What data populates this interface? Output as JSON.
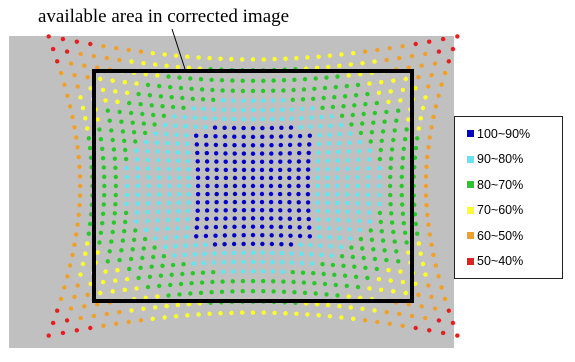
{
  "title": "available area in corrected image",
  "colors": {
    "background": "#c0c0c0",
    "frame": "#000000"
  },
  "legend": {
    "items": [
      {
        "label": "100~90%",
        "color": "#0000c8"
      },
      {
        "label": "90~80%",
        "color": "#5fe6f0"
      },
      {
        "label": "80~70%",
        "color": "#28c828"
      },
      {
        "label": "70~60%",
        "color": "#ffff28"
      },
      {
        "label": "60~50%",
        "color": "#f0a028"
      },
      {
        "label": "50~40%",
        "color": "#e61e1e"
      }
    ]
  }
}
